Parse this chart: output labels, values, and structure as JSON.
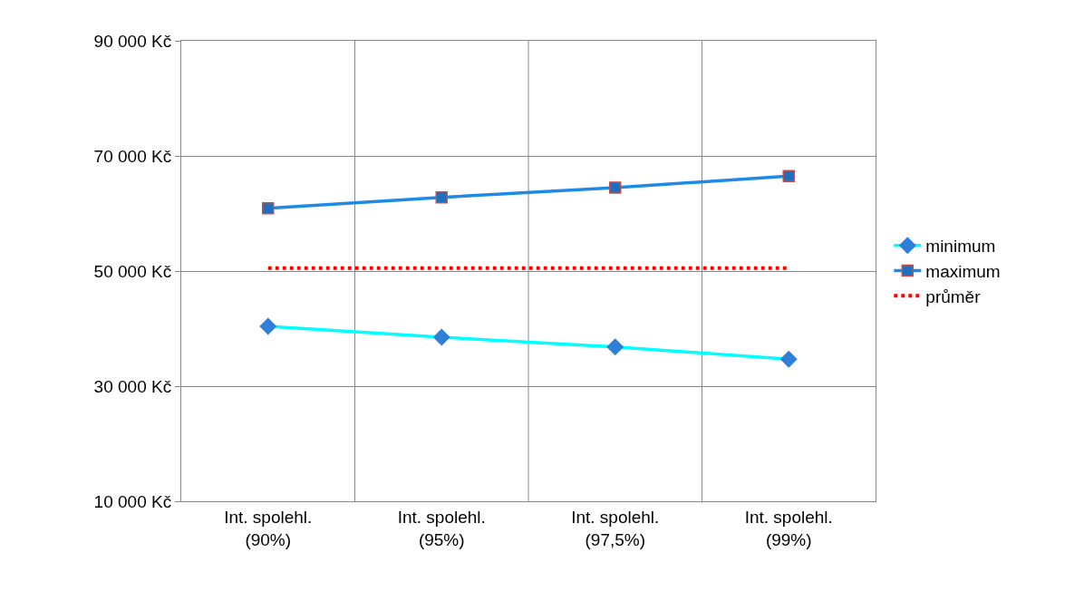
{
  "chart_data": {
    "type": "line",
    "categories": [
      "Int. spolehl. (90%)",
      "Int. spolehl. (95%)",
      "Int. spolehl. (97,5%)",
      "Int. spolehl. (99%)"
    ],
    "series": [
      {
        "name": "minimum",
        "color": "#00ffff",
        "colors": [
          "#2f7fd8",
          "#2f7fd8",
          "#2f7fd8",
          "#2f7fd8"
        ],
        "marker": "diamond",
        "values": [
          40400,
          38500,
          36800,
          34700
        ]
      },
      {
        "name": "maximum",
        "color": "#1e8ae6",
        "colors": [
          "#1f6fc0",
          "#1f6fc0",
          "#1f6fc0",
          "#1f6fc0"
        ],
        "marker": "square",
        "values": [
          60900,
          62800,
          64500,
          66500
        ]
      },
      {
        "name": "průměr",
        "color": "#ff0000",
        "marker": "none",
        "line_style": "dotted",
        "values": [
          50500,
          50500,
          50500,
          50500
        ]
      }
    ],
    "ylim": [
      10000,
      90000
    ],
    "yticks": [
      {
        "value": 10000,
        "label": "10 000 Kč"
      },
      {
        "value": 30000,
        "label": "30 000 Kč"
      },
      {
        "value": 50000,
        "label": "50 000 Kč"
      },
      {
        "value": 70000,
        "label": "70 000 Kč"
      },
      {
        "value": 90000,
        "label": "90 000 Kč"
      }
    ],
    "grid": true,
    "legend": "right"
  }
}
